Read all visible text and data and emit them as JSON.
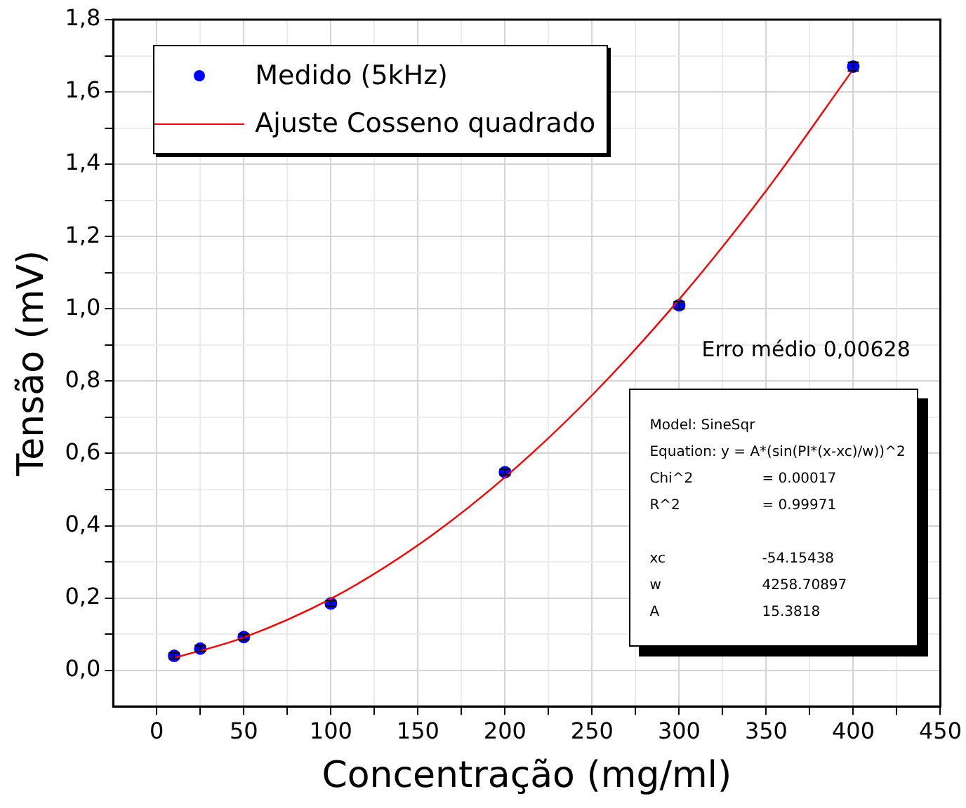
{
  "chart_data": {
    "type": "scatter",
    "xlabel": "Concentração (mg/ml)",
    "ylabel": "Tensão (mV)",
    "xlim": [
      -25,
      450
    ],
    "ylim": [
      -0.1,
      1.8
    ],
    "xticks": [
      0,
      {
        "value": 25,
        "label": null
      },
      50,
      {
        "value": 75,
        "label": null
      },
      100,
      {
        "value": 125,
        "label": null
      },
      150,
      {
        "value": 175,
        "label": null
      },
      200,
      {
        "value": 225,
        "label": null
      },
      250,
      {
        "value": 275,
        "label": null
      },
      300,
      {
        "value": 325,
        "label": null
      },
      350,
      {
        "value": 375,
        "label": null
      },
      400,
      {
        "value": 425,
        "label": null
      },
      450
    ],
    "yticks": [
      {
        "value": 0,
        "label": "0,0"
      },
      {
        "value": 0.1,
        "label": null
      },
      {
        "value": 0.2,
        "label": "0,2"
      },
      {
        "value": 0.3,
        "label": null
      },
      {
        "value": 0.4,
        "label": "0,4"
      },
      {
        "value": 0.5,
        "label": null
      },
      {
        "value": 0.6,
        "label": "0,6"
      },
      {
        "value": 0.7,
        "label": null
      },
      {
        "value": 0.8,
        "label": "0,8"
      },
      {
        "value": 0.9,
        "label": null
      },
      {
        "value": 1.0,
        "label": "1,0"
      },
      {
        "value": 1.1,
        "label": null
      },
      {
        "value": 1.2,
        "label": "1,2"
      },
      {
        "value": 1.3,
        "label": null
      },
      {
        "value": 1.4,
        "label": "1,4"
      },
      {
        "value": 1.5,
        "label": null
      },
      {
        "value": 1.6,
        "label": "1,6"
      },
      {
        "value": 1.7,
        "label": null
      },
      {
        "value": 1.8,
        "label": "1,8"
      }
    ],
    "grid": true,
    "legend": "top left",
    "series": [
      {
        "name": "Medido (5kHz)",
        "type": "scatter",
        "marker": "circle",
        "color": "#0000ff",
        "x": [
          10,
          25,
          50,
          100,
          200,
          300,
          400
        ],
        "values": [
          0.04,
          0.06,
          0.092,
          0.185,
          0.548,
          1.01,
          1.67
        ],
        "errors": [
          0.008,
          0.008,
          0.008,
          0.008,
          0.008,
          0.01,
          0.012
        ]
      },
      {
        "name": "Ajuste Cosseno quadrado",
        "type": "line",
        "marker": "none",
        "color": "#ff0000",
        "x": [
          10,
          50,
          100,
          150,
          200,
          250,
          300,
          350,
          400
        ],
        "values": [
          0.034,
          0.091,
          0.198,
          0.346,
          0.534,
          0.761,
          1.026,
          1.327,
          1.663
        ]
      }
    ],
    "annotations": [
      "Erro médio 0,00628",
      "Model: SineSqr",
      "Equation: y = A*(sin(PI*(x-xc)/w))^2",
      "Chi^2",
      "= 0.00017",
      "R^2",
      "= 0.99971",
      "xc",
      "-54.15438",
      "w",
      "4258.70897",
      "A",
      "15.3818"
    ]
  }
}
